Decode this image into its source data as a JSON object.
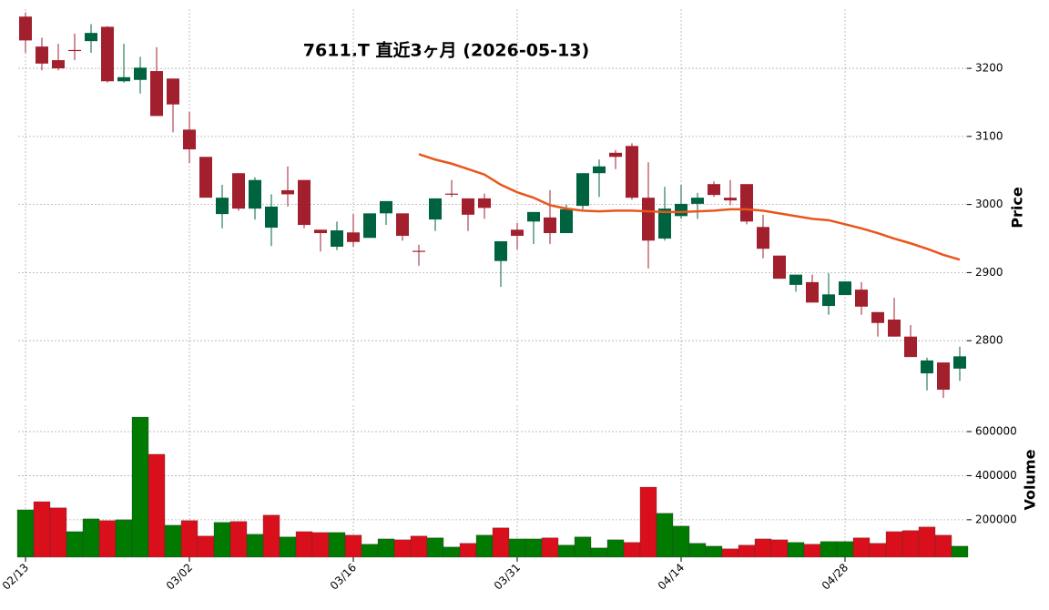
{
  "chart_data": {
    "type": "candlestick",
    "title": "7611.T 直近3ヶ月 (2026-05-13)",
    "ylabel": "Price",
    "y2label": "Volume",
    "categories": [
      "02/13",
      null,
      null,
      null,
      null,
      null,
      null,
      null,
      null,
      null,
      "03/02",
      null,
      null,
      null,
      null,
      null,
      null,
      null,
      null,
      null,
      "03/16",
      null,
      null,
      null,
      null,
      null,
      null,
      null,
      null,
      null,
      "03/31",
      null,
      null,
      null,
      null,
      null,
      null,
      null,
      null,
      null,
      "04/14",
      null,
      null,
      null,
      null,
      null,
      null,
      null,
      null,
      null,
      "04/28",
      null,
      null,
      null,
      null,
      null,
      null,
      null
    ],
    "open": [
      3276,
      3232,
      3212,
      3227,
      3240,
      3261,
      3181,
      3183,
      3196,
      3185,
      3110,
      3070,
      2986,
      3046,
      2994,
      2966,
      3021,
      3036,
      2963,
      2938,
      2959,
      2951,
      2987,
      2987,
      2932,
      2978,
      3016,
      3009,
      3009,
      2917,
      2963,
      2975,
      2981,
      2958,
      2998,
      3046,
      3076,
      3086,
      3010,
      2950,
      2983,
      3001,
      3030,
      3010,
      3030,
      2967,
      2925,
      2882,
      2886,
      2851,
      2867,
      2875,
      2842,
      2831,
      2806,
      2752,
      2768,
      2759
    ],
    "high": [
      3282,
      3245,
      3236,
      3251,
      3265,
      3262,
      3236,
      3217,
      3231,
      3185,
      3136,
      3070,
      3029,
      3046,
      3040,
      3015,
      3056,
      3036,
      2963,
      2975,
      2986,
      2987,
      3005,
      2987,
      2941,
      3009,
      3036,
      3009,
      3016,
      2946,
      2973,
      2989,
      3021,
      3000,
      3046,
      3066,
      3080,
      3090,
      3062,
      3026,
      3029,
      3017,
      3034,
      3036,
      3030,
      2985,
      2925,
      2897,
      2897,
      2899,
      2887,
      2886,
      2842,
      2863,
      2823,
      2775,
      2768,
      2791
    ],
    "low": [
      3223,
      3197,
      3197,
      3212,
      3223,
      3179,
      3179,
      3163,
      3130,
      3106,
      3061,
      3010,
      2965,
      2991,
      2978,
      2939,
      2997,
      2965,
      2931,
      2933,
      2938,
      2951,
      2970,
      2947,
      2910,
      2961,
      3011,
      2961,
      2979,
      2879,
      2934,
      2942,
      2942,
      2958,
      2993,
      3011,
      3052,
      3007,
      2906,
      2947,
      2979,
      2979,
      3011,
      2999,
      2971,
      2921,
      2891,
      2872,
      2856,
      2838,
      2867,
      2838,
      2806,
      2806,
      2776,
      2727,
      2716,
      2741
    ],
    "close": [
      3241,
      3207,
      3200,
      3226,
      3252,
      3181,
      3187,
      3201,
      3130,
      3147,
      3081,
      3010,
      3010,
      2994,
      3036,
      2997,
      3015,
      2970,
      2958,
      2962,
      2945,
      2987,
      3005,
      2954,
      2931,
      3009,
      3015,
      2985,
      2995,
      2946,
      2954,
      2989,
      2958,
      2993,
      3046,
      3056,
      3070,
      3010,
      2947,
      2994,
      3001,
      3010,
      3014,
      3006,
      2975,
      2935,
      2891,
      2897,
      2856,
      2868,
      2887,
      2850,
      2826,
      2806,
      2776,
      2771,
      2728,
      2777
    ],
    "up_color": "#00633f",
    "down_color": "#a21f2d",
    "volume": [
      245000,
      282000,
      254000,
      146000,
      204000,
      196000,
      200000,
      666000,
      497000,
      175000,
      196000,
      126000,
      188000,
      192000,
      134000,
      221000,
      122000,
      146000,
      142000,
      142000,
      130000,
      89000,
      113000,
      109000,
      126000,
      118000,
      76000,
      93000,
      130000,
      163000,
      113000,
      113000,
      118000,
      85000,
      122000,
      72000,
      109000,
      97000,
      348000,
      229000,
      171000,
      93000,
      80000,
      68000,
      85000,
      113000,
      109000,
      97000,
      89000,
      101000,
      101000,
      118000,
      93000,
      146000,
      151000,
      167000,
      130000,
      80000
    ],
    "volume_up_color": "#007a00",
    "volume_down_color": "#d9101c",
    "ma": {
      "color": "#e8561c",
      "values": [
        null,
        null,
        null,
        null,
        null,
        null,
        null,
        null,
        null,
        null,
        null,
        null,
        null,
        null,
        null,
        null,
        null,
        null,
        null,
        null,
        null,
        null,
        null,
        null,
        3074,
        3066,
        3060,
        3052,
        3044,
        3029,
        3018,
        3010,
        2999,
        2994,
        2991,
        2990,
        2991,
        2991,
        2990,
        2989,
        2989,
        2990,
        2991,
        2993,
        2993,
        2991,
        2987,
        2983,
        2979,
        2977,
        2971,
        2965,
        2958,
        2950,
        2943,
        2935,
        2926,
        2919
      ]
    },
    "ylim": [
      2712,
      3287
    ],
    "yticks": [
      2800,
      2900,
      3000,
      3100,
      3200
    ],
    "y2lim": [
      30000,
      720000
    ],
    "y2ticks": [
      200000,
      400000,
      600000
    ],
    "grid": true
  }
}
